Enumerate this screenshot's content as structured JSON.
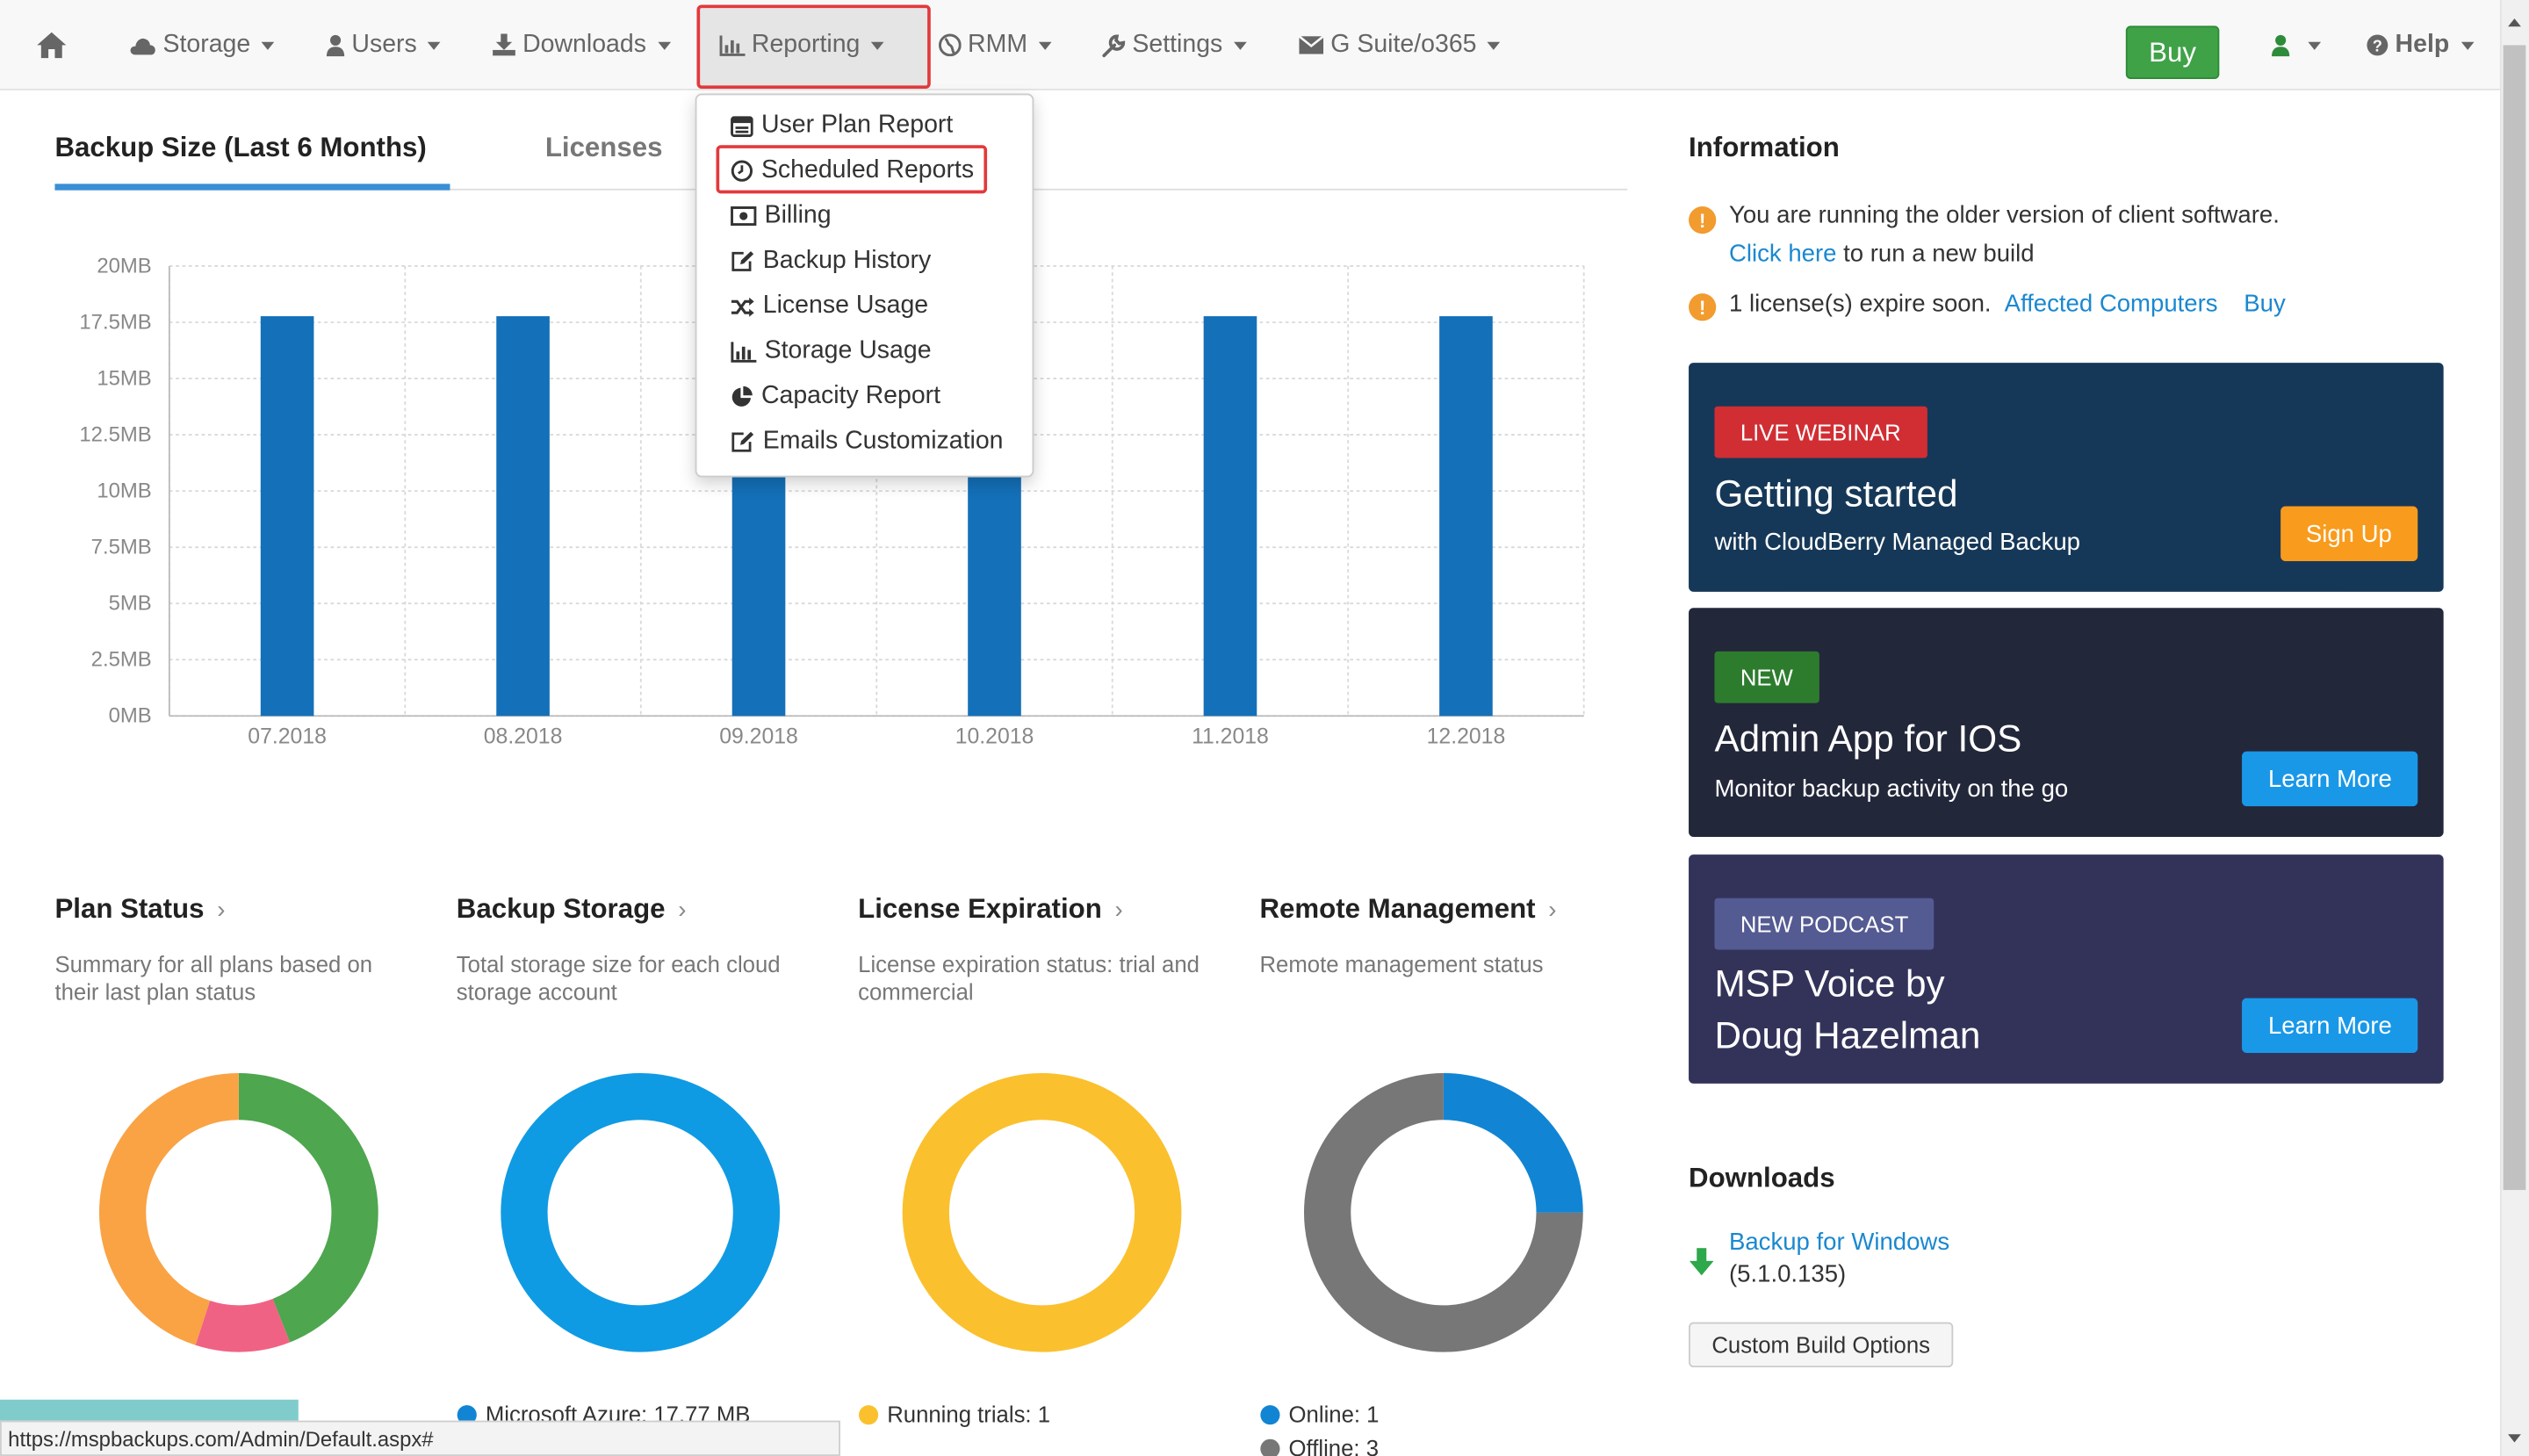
{
  "navbar": {
    "items": [
      {
        "label": "Storage",
        "icon": "cloud-icon"
      },
      {
        "label": "Users",
        "icon": "user-icon"
      },
      {
        "label": "Downloads",
        "icon": "download-icon"
      },
      {
        "label": "Reporting",
        "icon": "bar-chart-icon"
      },
      {
        "label": "RMM",
        "icon": "globe-icon"
      },
      {
        "label": "Settings",
        "icon": "wrench-icon"
      },
      {
        "label": "G Suite/o365",
        "icon": "envelope-icon"
      }
    ],
    "buy_label": "Buy",
    "help_label": "Help"
  },
  "reporting_menu": {
    "items": [
      {
        "label": "User Plan Report",
        "icon": "list-icon"
      },
      {
        "label": "Scheduled Reports",
        "icon": "clock-icon"
      },
      {
        "label": "Billing",
        "icon": "money-icon"
      },
      {
        "label": "Backup History",
        "icon": "edit-icon"
      },
      {
        "label": "License Usage",
        "icon": "shuffle-icon"
      },
      {
        "label": "Storage Usage",
        "icon": "bar-chart-icon"
      },
      {
        "label": "Capacity Report",
        "icon": "pie-chart-icon"
      },
      {
        "label": "Emails Customization",
        "icon": "edit-icon"
      }
    ]
  },
  "tabs": {
    "active": "Backup Size (Last 6 Months)",
    "second": "Licenses"
  },
  "chart_data": {
    "type": "bar",
    "categories": [
      "07.2018",
      "08.2018",
      "09.2018",
      "10.2018",
      "11.2018",
      "12.2018"
    ],
    "values": [
      17.77,
      17.77,
      17.77,
      17.77,
      17.77,
      17.77
    ],
    "value_unit": "MB",
    "yticks": [
      "0MB",
      "2.5MB",
      "5MB",
      "7.5MB",
      "10MB",
      "12.5MB",
      "15MB",
      "17.5MB",
      "20MB"
    ],
    "ylim": [
      0,
      20
    ],
    "grid": true,
    "bar_color": "#1470b8"
  },
  "widgets": [
    {
      "title": "Plan Status",
      "description": "Summary for all plans based on their last plan status",
      "segments": [
        {
          "share": 0.44,
          "color": "#4ea64f"
        },
        {
          "share": 0.11,
          "color": "#f06283"
        },
        {
          "share": 0.45,
          "color": "#f9a345"
        }
      ]
    },
    {
      "title": "Backup Storage",
      "description": "Total storage size for each cloud storage account",
      "segments": [
        {
          "share": 1.0,
          "color": "#0f9be3"
        }
      ],
      "legend": [
        "Microsoft Azure: 17.77 MB"
      ]
    },
    {
      "title": "License Expiration",
      "description": "License expiration status: trial and commercial",
      "segments": [
        {
          "share": 1.0,
          "color": "#fbc02d"
        }
      ],
      "legend": [
        "Running trials: 1"
      ]
    },
    {
      "title": "Remote Management",
      "description": "Remote management status",
      "segments": [
        {
          "share": 0.25,
          "color": "#1185d4"
        },
        {
          "share": 0.75,
          "color": "#777777"
        }
      ],
      "legend": [
        "Online: 1",
        "Offline: 3"
      ]
    }
  ],
  "information": {
    "heading": "Information",
    "notice1_text": "You are running the older version of client software.",
    "notice1_link": "Click here",
    "notice1_rest": "to run a new build",
    "notice2_text": "1 license(s) expire soon.",
    "notice2_link": "Affected Computers",
    "notice2_buy": "Buy"
  },
  "promos": [
    {
      "badge": "LIVE WEBINAR",
      "title": "Getting started",
      "subtitle": "with CloudBerry Managed Backup",
      "button": "Sign Up",
      "bg": "#163858",
      "badge_bg": "#d02e33",
      "button_bg": "#f99b1c"
    },
    {
      "badge": "NEW",
      "title": "Admin App for IOS",
      "subtitle": "Monitor backup activity on the go",
      "button": "Learn More",
      "bg": "#23273a",
      "badge_bg": "#2d7c2e",
      "button_bg": "#1a98e8"
    },
    {
      "badge": "NEW PODCAST",
      "title_line1": "MSP Voice by",
      "title_line2": "Doug Hazelman",
      "button": "Learn More",
      "bg": "#33335a",
      "badge_bg": "#545a92",
      "button_bg": "#1a98e8"
    }
  ],
  "downloads": {
    "heading": "Downloads",
    "item_label": "Backup for Windows",
    "item_version": "(5.1.0.135)",
    "custom_button": "Custom Build Options"
  },
  "status_bar": {
    "url": "https://mspbackups.com/Admin/Default.aspx#"
  }
}
